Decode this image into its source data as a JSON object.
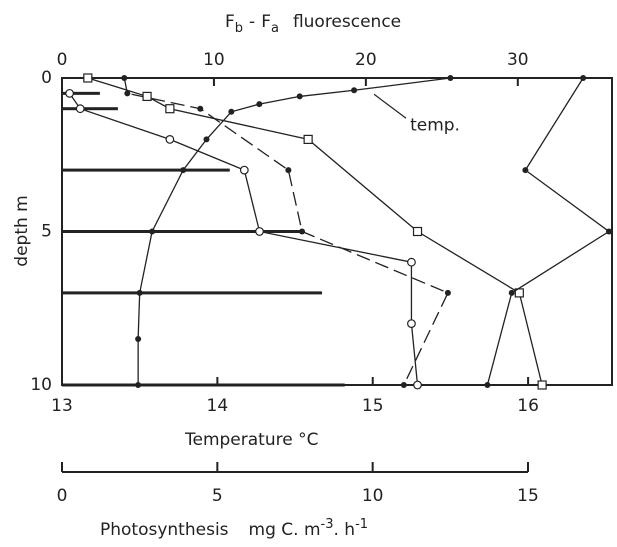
{
  "chart_data": {
    "type": "line",
    "x2label_parts": [
      "F",
      "b",
      "-",
      "F",
      "a",
      "fluorescence"
    ],
    "xlabel": "Temperature °C",
    "ylabel": "depth m",
    "ylim": [
      0,
      10
    ],
    "yticks": [
      0,
      5,
      10
    ],
    "xlim": [
      13,
      16.54
    ],
    "xticks": [
      13,
      14,
      15,
      16
    ],
    "x2lim": [
      0,
      36.2
    ],
    "x2ticks": [
      0,
      10,
      20,
      30
    ],
    "series": [
      {
        "name": "temp.",
        "axis": "x",
        "marker": "dot",
        "dash": false,
        "color": "#222",
        "depth": [
          0,
          0.4,
          0.6,
          0.85,
          1.1,
          2,
          3,
          5,
          7,
          8.5,
          10
        ],
        "values": [
          15.5,
          14.88,
          14.53,
          14.27,
          14.09,
          13.93,
          13.78,
          13.58,
          13.5,
          13.49,
          13.49
        ]
      },
      {
        "axis": "x2",
        "marker": "dot",
        "dash": true,
        "color": "#222",
        "depth": [
          0,
          0.5,
          1,
          3,
          5,
          7,
          10
        ],
        "values": [
          4.1,
          4.3,
          9.1,
          14.9,
          15.8,
          25.4,
          22.5
        ]
      },
      {
        "axis": "x2",
        "marker": "square",
        "dash": false,
        "color": "#222",
        "depth": [
          0,
          0.6,
          1,
          2,
          5,
          7,
          10
        ],
        "values": [
          1.7,
          5.6,
          7.1,
          16.2,
          23.4,
          30.1,
          31.6
        ]
      },
      {
        "axis": "x2",
        "marker": "circle",
        "dash": false,
        "color": "#222",
        "depth": [
          0.5,
          1,
          2,
          3,
          5,
          6,
          8,
          10
        ],
        "values": [
          0.5,
          1.2,
          7.1,
          12.0,
          13.0,
          23.0,
          23.0,
          23.4
        ]
      },
      {
        "axis": "x2",
        "marker": "dot",
        "dash": false,
        "color": "#222",
        "depth": [
          0,
          3,
          5,
          7,
          10
        ],
        "values": [
          34.3,
          30.5,
          36.0,
          29.6,
          28.0
        ]
      }
    ],
    "photosynthesis": {
      "label_parts": [
        "Photosynthesis",
        "mg C. m",
        "-3",
        ". h",
        "-1"
      ],
      "lim": [
        0,
        15
      ],
      "ticks": [
        0,
        5,
        10,
        15
      ],
      "depth": [
        0.5,
        1,
        3,
        5,
        7,
        10
      ],
      "values": [
        1.22,
        1.8,
        5.4,
        7.66,
        8.37,
        9.1
      ],
      "color": "#222"
    }
  }
}
